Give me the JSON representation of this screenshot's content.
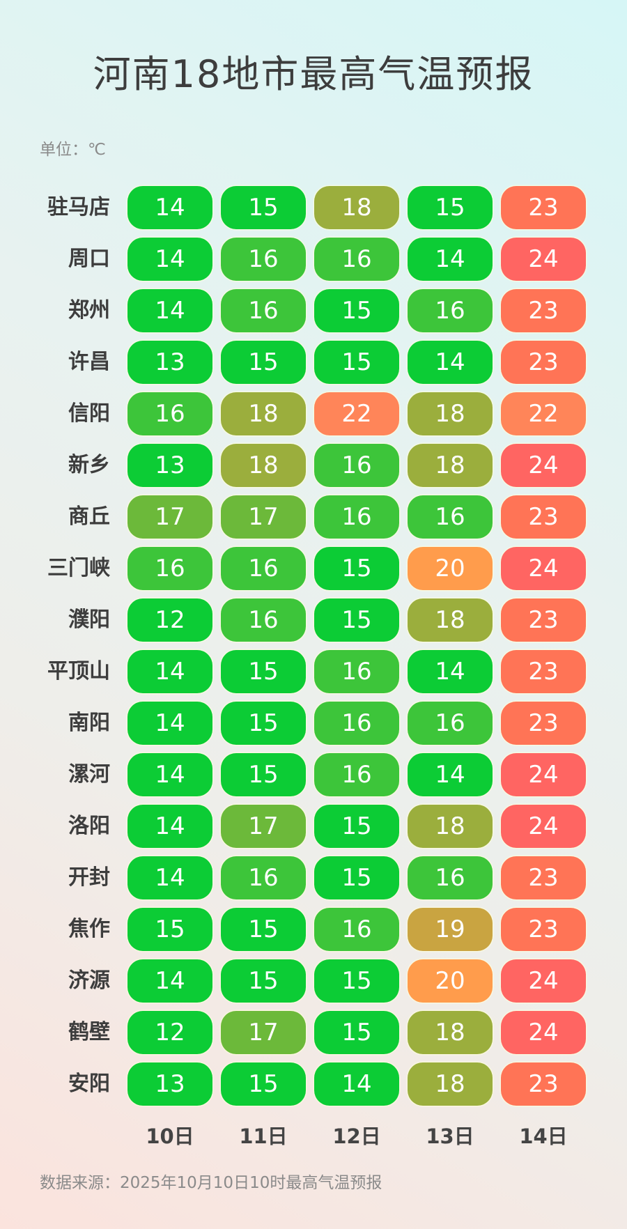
{
  "title": "河南18地市最高气温预报",
  "unit_label": "单位：℃",
  "source": "数据来源：2025年10月10日10时最高气温预报",
  "chart_data": {
    "type": "table",
    "title": "河南18地市最高气温预报",
    "columns": [
      "10日",
      "11日",
      "12日",
      "13日",
      "14日"
    ],
    "rows": [
      {
        "city": "驻马店",
        "values": [
          14,
          15,
          18,
          15,
          23
        ]
      },
      {
        "city": "周口",
        "values": [
          14,
          16,
          16,
          14,
          24
        ]
      },
      {
        "city": "郑州",
        "values": [
          14,
          16,
          15,
          16,
          23
        ]
      },
      {
        "city": "许昌",
        "values": [
          13,
          15,
          15,
          14,
          23
        ]
      },
      {
        "city": "信阳",
        "values": [
          16,
          18,
          22,
          18,
          22
        ]
      },
      {
        "city": "新乡",
        "values": [
          13,
          18,
          16,
          18,
          24
        ]
      },
      {
        "city": "商丘",
        "values": [
          17,
          17,
          16,
          16,
          23
        ]
      },
      {
        "city": "三门峡",
        "values": [
          16,
          16,
          15,
          20,
          24
        ]
      },
      {
        "city": "濮阳",
        "values": [
          12,
          16,
          15,
          18,
          23
        ]
      },
      {
        "city": "平顶山",
        "values": [
          14,
          15,
          16,
          14,
          23
        ]
      },
      {
        "city": "南阳",
        "values": [
          14,
          15,
          16,
          16,
          23
        ]
      },
      {
        "city": "漯河",
        "values": [
          14,
          15,
          16,
          14,
          24
        ]
      },
      {
        "city": "洛阳",
        "values": [
          14,
          17,
          15,
          18,
          24
        ]
      },
      {
        "city": "开封",
        "values": [
          14,
          16,
          15,
          16,
          23
        ]
      },
      {
        "city": "焦作",
        "values": [
          15,
          15,
          16,
          19,
          23
        ]
      },
      {
        "city": "济源",
        "values": [
          14,
          15,
          15,
          20,
          24
        ]
      },
      {
        "city": "鹤壁",
        "values": [
          12,
          17,
          15,
          18,
          24
        ]
      },
      {
        "city": "安阳",
        "values": [
          13,
          15,
          14,
          18,
          23
        ]
      }
    ],
    "color_scale": {
      "12": "#0ccc35",
      "13": "#0ccc35",
      "14": "#0ccc35",
      "15": "#0ccc35",
      "16": "#3dc53a",
      "17": "#6cb93a",
      "18": "#9bae3d",
      "19": "#c9a441",
      "20": "#ff9c4c",
      "22": "#ff8559",
      "23": "#ff7456",
      "24": "#ff6562"
    }
  }
}
